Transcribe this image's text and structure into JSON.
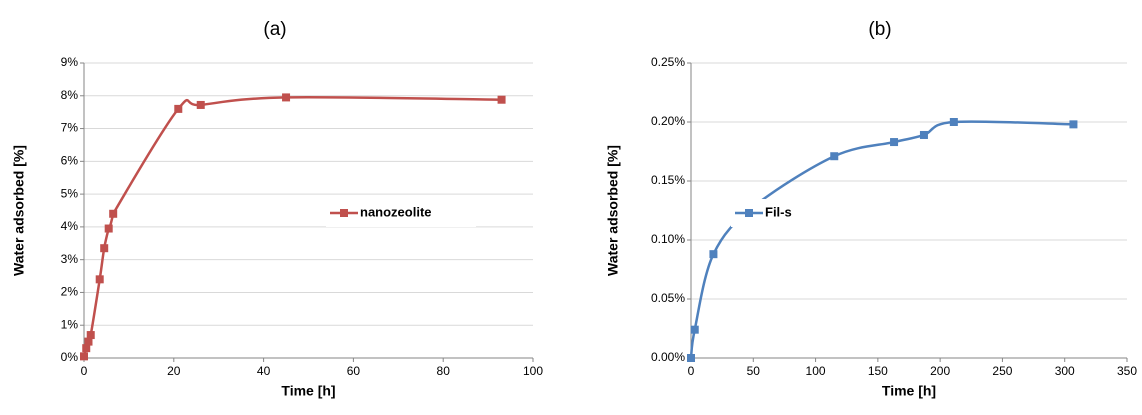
{
  "chart_data": [
    {
      "type": "line",
      "title": "(a)",
      "x_label": "Time [h]",
      "y_label": "Water adsorbed [%]",
      "x": [
        0,
        0.5,
        1,
        1.5,
        3.5,
        4.5,
        5.5,
        6.5,
        21,
        26,
        45,
        93
      ],
      "series": [
        {
          "name": "nanozeolite",
          "color": "#c0504d",
          "values": [
            0.05,
            0.3,
            0.5,
            0.7,
            2.4,
            3.35,
            3.95,
            4.4,
            7.6,
            7.72,
            7.95,
            7.88
          ]
        }
      ],
      "xlim": [
        0,
        100
      ],
      "xticks": [
        0,
        20,
        40,
        60,
        80,
        100
      ],
      "ylim": [
        0,
        9
      ],
      "yticks": [
        {
          "value": 0,
          "label": "0%"
        },
        {
          "value": 1,
          "label": "1%"
        },
        {
          "value": 2,
          "label": "2%"
        },
        {
          "value": 3,
          "label": "3%"
        },
        {
          "value": 4,
          "label": "4%"
        },
        {
          "value": 5,
          "label": "5%"
        },
        {
          "value": 6,
          "label": "6%"
        },
        {
          "value": 7,
          "label": "7%"
        },
        {
          "value": 8,
          "label": "8%"
        },
        {
          "value": 9,
          "label": "9%"
        }
      ],
      "grid": true
    },
    {
      "type": "line",
      "title": "(b)",
      "x_label": "Time [h]",
      "y_label": "Water adsorbed [%]",
      "x": [
        0,
        3,
        18,
        50,
        115,
        163,
        187,
        211,
        307
      ],
      "series": [
        {
          "name": "Fil-s",
          "color": "#4f81bd",
          "values": [
            0,
            0.024,
            0.088,
            0.128,
            0.171,
            0.183,
            0.189,
            0.2,
            0.198
          ]
        }
      ],
      "xlim": [
        0,
        350
      ],
      "xticks": [
        0,
        50,
        100,
        150,
        200,
        250,
        300,
        350
      ],
      "ylim": [
        0,
        0.25
      ],
      "yticks": [
        {
          "value": 0,
          "label": "0.00%"
        },
        {
          "value": 0.05,
          "label": "0.05%"
        },
        {
          "value": 0.1,
          "label": "0.10%"
        },
        {
          "value": 0.15,
          "label": "0.15%"
        },
        {
          "value": 0.2,
          "label": "0.20%"
        },
        {
          "value": 0.25,
          "label": "0.25%"
        }
      ],
      "grid": true
    }
  ]
}
